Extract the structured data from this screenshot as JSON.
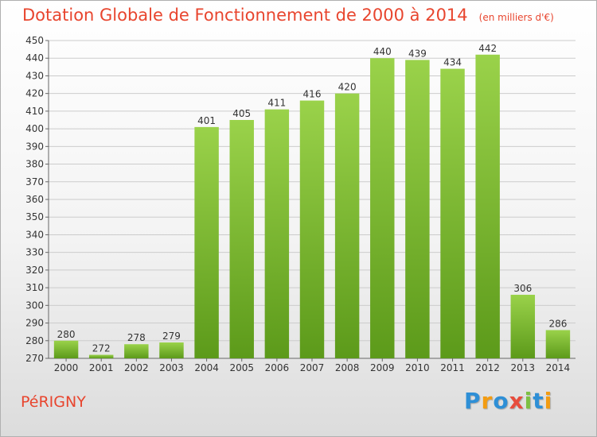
{
  "header": {
    "title": "Dotation Globale de Fonctionnement de 2000 à 2014",
    "unit": "(en milliers d'€)"
  },
  "footer": {
    "commune": "PéRIGNY",
    "logo_letters": [
      "P",
      "r",
      "o",
      "x",
      "i",
      "t",
      "i"
    ],
    "logo_colors": [
      "#2e8fd6",
      "#f39c12",
      "#2e8fd6",
      "#e74c3c",
      "#7cc043",
      "#2e8fd6",
      "#f39c12"
    ]
  },
  "colors": {
    "bar_light": "#9ad24a",
    "bar_dark": "#5c9a1a",
    "title": "#e8452e",
    "grid": "#cccccc"
  },
  "chart_data": {
    "type": "bar",
    "title": "Dotation Globale de Fonctionnement de 2000 à 2014",
    "xlabel": "",
    "ylabel": "",
    "categories": [
      "2000",
      "2001",
      "2002",
      "2003",
      "2004",
      "2005",
      "2006",
      "2007",
      "2008",
      "2009",
      "2010",
      "2011",
      "2012",
      "2013",
      "2014"
    ],
    "values": [
      280,
      272,
      278,
      279,
      401,
      405,
      411,
      416,
      420,
      440,
      439,
      434,
      442,
      306,
      286
    ],
    "ylim": [
      270,
      450
    ],
    "ytick_step": 10,
    "grid": true
  }
}
